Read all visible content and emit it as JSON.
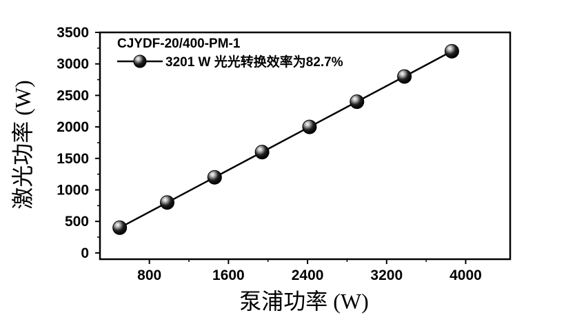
{
  "chart_data": {
    "type": "line",
    "title": "CJYDF-20/400-PM-1",
    "xlabel": "泵浦功率 (W)",
    "ylabel": "激光功率 (W)",
    "xlim": [
      300,
      4450
    ],
    "ylim": [
      -100,
      3500
    ],
    "xticks": [
      800,
      1600,
      2400,
      3200,
      4000
    ],
    "yticks": [
      0,
      500,
      1000,
      1500,
      2000,
      2500,
      3000,
      3500
    ],
    "series": [
      {
        "name": "3201 W 光光转换效率为82.7%",
        "marker": "sphere",
        "line_color": "#000000",
        "x": [
          500,
          980,
          1460,
          1940,
          2420,
          2900,
          3380,
          3860
        ],
        "y": [
          400,
          800,
          1200,
          1600,
          2000,
          2400,
          2800,
          3201
        ]
      }
    ],
    "legend_position": "top-left",
    "grid": false
  }
}
